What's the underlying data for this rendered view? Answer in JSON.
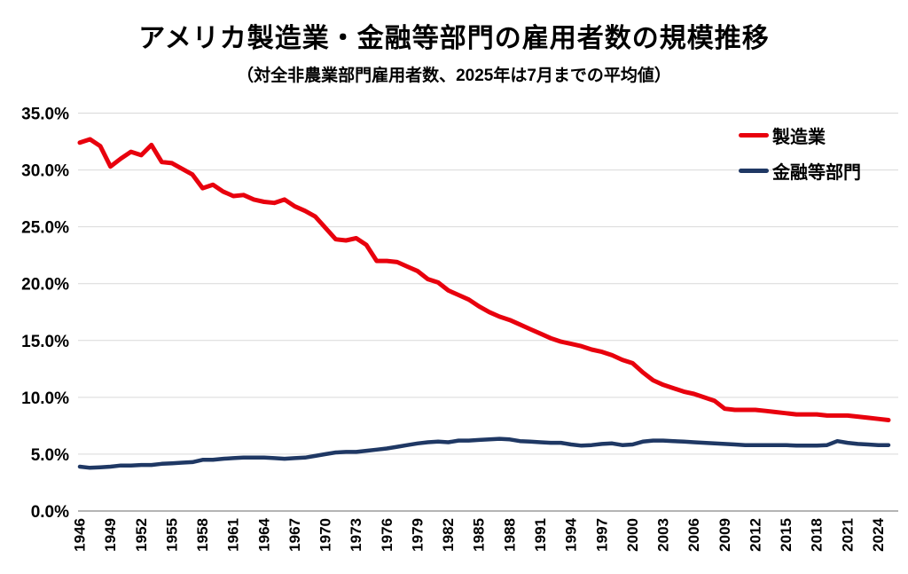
{
  "chart_data": {
    "type": "line",
    "title": "アメリカ製造業・金融等部門の雇用者数の規模推移",
    "subtitle": "（対全非農業部門雇用者数、2025年は7月までの平均値）",
    "x_start_year": 1946,
    "x_end_year": 2025,
    "x": [
      1946,
      1947,
      1948,
      1949,
      1950,
      1951,
      1952,
      1953,
      1954,
      1955,
      1956,
      1957,
      1958,
      1959,
      1960,
      1961,
      1962,
      1963,
      1964,
      1965,
      1966,
      1967,
      1968,
      1969,
      1970,
      1971,
      1972,
      1973,
      1974,
      1975,
      1976,
      1977,
      1978,
      1979,
      1980,
      1981,
      1982,
      1983,
      1984,
      1985,
      1986,
      1987,
      1988,
      1989,
      1990,
      1991,
      1992,
      1993,
      1994,
      1995,
      1996,
      1997,
      1998,
      1999,
      2000,
      2001,
      2002,
      2003,
      2004,
      2005,
      2006,
      2007,
      2008,
      2009,
      2010,
      2011,
      2012,
      2013,
      2014,
      2015,
      2016,
      2017,
      2018,
      2019,
      2020,
      2021,
      2022,
      2023,
      2024,
      2025
    ],
    "series": [
      {
        "id": "manufacturing",
        "name": "製造業",
        "color": "#e8000d",
        "stroke_width": 5,
        "values": [
          32.4,
          32.7,
          32.1,
          30.3,
          31.0,
          31.6,
          31.3,
          32.2,
          30.7,
          30.6,
          30.1,
          29.6,
          28.4,
          28.7,
          28.1,
          27.7,
          27.8,
          27.4,
          27.2,
          27.1,
          27.4,
          26.8,
          26.4,
          25.9,
          24.9,
          23.9,
          23.8,
          24.0,
          23.4,
          22.0,
          22.0,
          21.9,
          21.5,
          21.1,
          20.4,
          20.1,
          19.4,
          19.0,
          18.6,
          18.0,
          17.5,
          17.1,
          16.8,
          16.4,
          16.0,
          15.6,
          15.2,
          14.9,
          14.7,
          14.5,
          14.2,
          14.0,
          13.7,
          13.3,
          13.0,
          12.2,
          11.5,
          11.1,
          10.8,
          10.5,
          10.3,
          10.0,
          9.7,
          9.0,
          8.9,
          8.9,
          8.9,
          8.8,
          8.7,
          8.6,
          8.5,
          8.5,
          8.5,
          8.4,
          8.4,
          8.4,
          8.3,
          8.2,
          8.1,
          8.0
        ]
      },
      {
        "id": "finance",
        "name": "金融等部門",
        "color": "#1f3864",
        "stroke_width": 4.5,
        "values": [
          3.9,
          3.8,
          3.85,
          3.9,
          4.0,
          4.0,
          4.05,
          4.05,
          4.15,
          4.2,
          4.25,
          4.3,
          4.5,
          4.5,
          4.6,
          4.65,
          4.7,
          4.7,
          4.7,
          4.65,
          4.6,
          4.65,
          4.7,
          4.85,
          5.0,
          5.15,
          5.2,
          5.2,
          5.3,
          5.4,
          5.5,
          5.65,
          5.8,
          5.95,
          6.05,
          6.1,
          6.05,
          6.2,
          6.2,
          6.25,
          6.3,
          6.35,
          6.3,
          6.15,
          6.1,
          6.05,
          6.0,
          6.0,
          5.85,
          5.75,
          5.8,
          5.9,
          5.95,
          5.8,
          5.85,
          6.1,
          6.2,
          6.2,
          6.15,
          6.1,
          6.05,
          6.0,
          5.95,
          5.9,
          5.85,
          5.8,
          5.8,
          5.8,
          5.8,
          5.8,
          5.75,
          5.75,
          5.75,
          5.8,
          6.15,
          6.0,
          5.9,
          5.85,
          5.8,
          5.8
        ]
      }
    ],
    "ylim": [
      0,
      35
    ],
    "ytick_step": 5,
    "ytick_labels": [
      "0.0%",
      "5.0%",
      "10.0%",
      "15.0%",
      "20.0%",
      "25.0%",
      "30.0%",
      "35.0%"
    ],
    "xtick_labels": [
      "1946",
      "1949",
      "1952",
      "1955",
      "1958",
      "1961",
      "1964",
      "1967",
      "1970",
      "1973",
      "1976",
      "1979",
      "1982",
      "1985",
      "1988",
      "1991",
      "1994",
      "1997",
      "2000",
      "2003",
      "2006",
      "2009",
      "2012",
      "2015",
      "2018",
      "2021",
      "2024"
    ],
    "xtick_interval_years": 3,
    "grid": "horizontal",
    "gridline_color": "#d9d9d9",
    "axis_line_color": "#9b9b9b",
    "legend_position": "top-right-inside",
    "xlabel": "",
    "ylabel": ""
  }
}
